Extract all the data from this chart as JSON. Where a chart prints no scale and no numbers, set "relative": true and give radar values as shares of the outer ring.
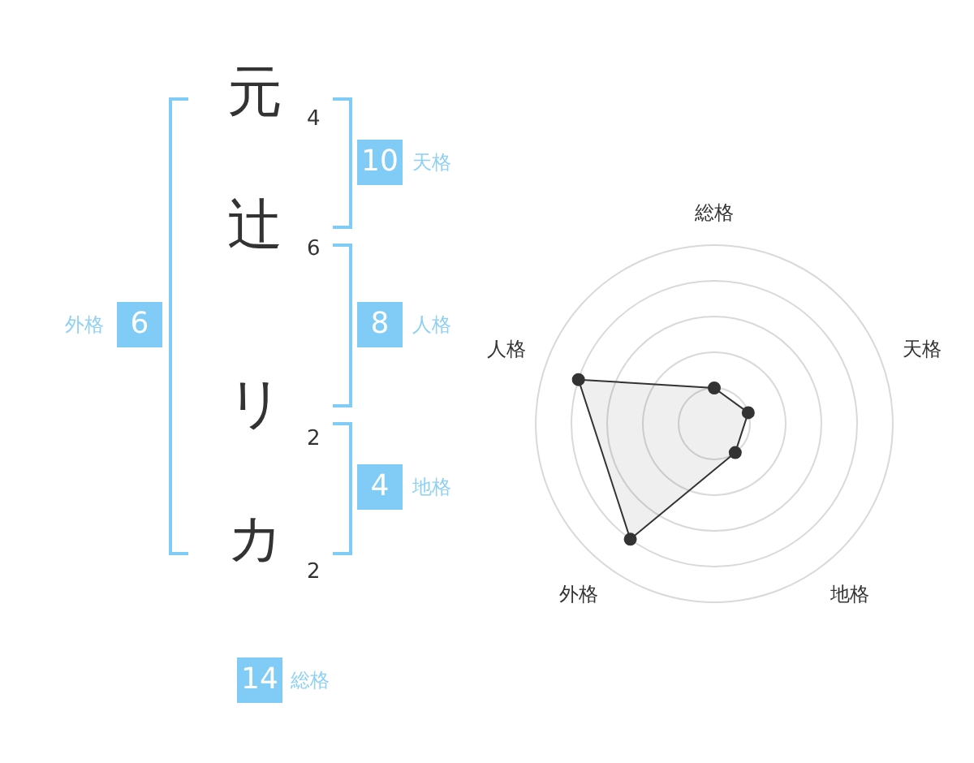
{
  "chart_data": [
    {
      "type": "other",
      "annotations": [
        "元",
        "4",
        "辻",
        "6",
        "リ",
        "2",
        "カ",
        "2",
        "10",
        "天格",
        "8",
        "人格",
        "4",
        "地格",
        "6",
        "外格",
        "14",
        "総格"
      ]
    },
    {
      "type": "radar",
      "categories": [
        "総格",
        "天格",
        "地格",
        "外格",
        "人格"
      ],
      "relative": true,
      "grid": true,
      "marker": "circle",
      "series": [
        {
          "color": "#333333",
          "values": [
            0.2,
            0.2,
            0.2,
            0.8,
            0.8
          ]
        }
      ]
    }
  ]
}
